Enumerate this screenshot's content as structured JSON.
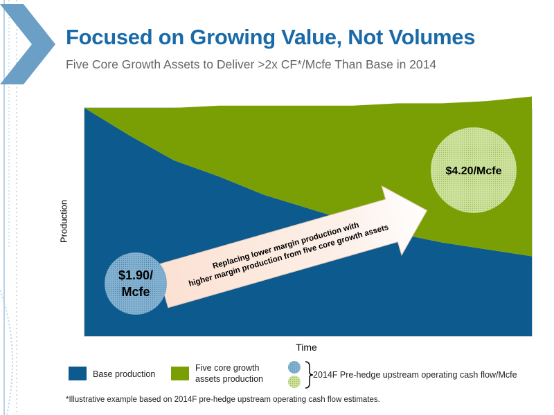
{
  "title": "Focused on Growing Value, Not Volumes",
  "subtitle": "Five Core Growth Assets to Deliver >2x CF*/Mcfe Than Base in 2014",
  "chart_data": {
    "type": "area",
    "title": "",
    "xlabel": "Time",
    "ylabel": "Production",
    "x": [
      0,
      0.1,
      0.2,
      0.3,
      0.4,
      0.5,
      0.6,
      0.7,
      0.8,
      0.9,
      1.0
    ],
    "series": [
      {
        "name": "Base production",
        "color": "#0d5a8e",
        "values": [
          1.0,
          0.88,
          0.77,
          0.7,
          0.62,
          0.56,
          0.5,
          0.45,
          0.41,
          0.38,
          0.35
        ]
      },
      {
        "name": "Five core growth assets production",
        "color": "#7a9f05",
        "values": [
          0.0,
          0.12,
          0.23,
          0.31,
          0.39,
          0.45,
          0.51,
          0.57,
          0.61,
          0.65,
          0.7
        ]
      }
    ],
    "ylim": [
      0,
      1.0
    ],
    "stacked": true,
    "annotations": {
      "low_bubble": "$1.90/ Mcfe",
      "low_bubble_line1": "$1.90/",
      "low_bubble_line2": "Mcfe",
      "high_bubble": "$4.20/Mcfe",
      "arrow_line1": "Replacing lower margin production with",
      "arrow_line2": "higher margin production from five core growth assets"
    },
    "legend": [
      {
        "label": "Base production",
        "color": "#0d5a8e"
      },
      {
        "label_line1": "Five core growth",
        "label_line2": "assets production",
        "color": "#7a9f05"
      },
      {
        "label": "2014F Pre-hedge upstream operating cash flow/Mcfe"
      }
    ],
    "grid": false
  },
  "footnote": "*Illustrative example based on 2014F pre-hedge upstream operating cash flow estimates."
}
